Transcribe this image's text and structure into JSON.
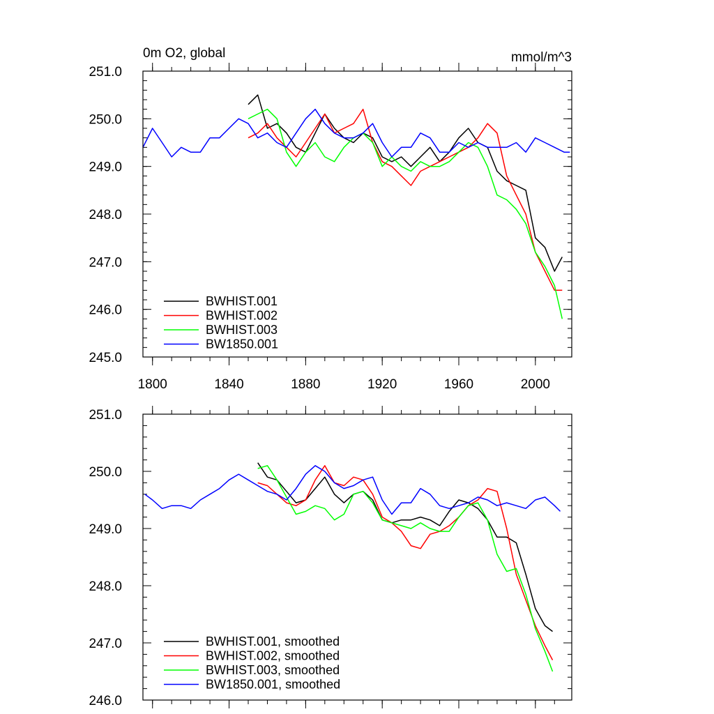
{
  "chart_data": [
    {
      "type": "line",
      "title": "0m O2, global",
      "units": "mmol/m^3",
      "xlim": [
        1795,
        2019
      ],
      "ylim": [
        245.0,
        251.0
      ],
      "x_ticks": [
        1800,
        1840,
        1880,
        1920,
        1960,
        2000
      ],
      "x_tick_labels": [
        "1800",
        "1840",
        "1880",
        "1920",
        "1960",
        "2000"
      ],
      "y_ticks": [
        245.0,
        246.0,
        247.0,
        248.0,
        249.0,
        250.0,
        251.0
      ],
      "y_tick_labels": [
        "245.0",
        "246.0",
        "247.0",
        "248.0",
        "249.0",
        "250.0",
        "251.0"
      ],
      "legend_position": "bottom-left",
      "series": [
        {
          "name": "BWHIST.001",
          "color": "#000000",
          "x": [
            1850,
            1855,
            1860,
            1865,
            1870,
            1875,
            1880,
            1885,
            1890,
            1895,
            1900,
            1905,
            1910,
            1915,
            1920,
            1925,
            1930,
            1935,
            1940,
            1945,
            1950,
            1955,
            1960,
            1965,
            1970,
            1975,
            1980,
            1985,
            1990,
            1995,
            2000,
            2005,
            2010,
            2014
          ],
          "values": [
            250.3,
            250.5,
            249.8,
            249.9,
            249.7,
            249.4,
            249.3,
            249.7,
            250.1,
            249.8,
            249.6,
            249.5,
            249.7,
            249.6,
            249.2,
            249.1,
            249.2,
            249.0,
            249.2,
            249.4,
            249.1,
            249.3,
            249.6,
            249.8,
            249.5,
            249.4,
            248.9,
            248.7,
            248.6,
            248.5,
            247.5,
            247.3,
            246.8,
            247.1
          ]
        },
        {
          "name": "BWHIST.002",
          "color": "#ff0000",
          "x": [
            1850,
            1855,
            1860,
            1865,
            1870,
            1875,
            1880,
            1885,
            1890,
            1895,
            1900,
            1905,
            1910,
            1915,
            1920,
            1925,
            1930,
            1935,
            1940,
            1945,
            1950,
            1955,
            1960,
            1965,
            1970,
            1975,
            1980,
            1985,
            1990,
            1995,
            2000,
            2005,
            2010,
            2014
          ],
          "values": [
            249.6,
            249.7,
            249.9,
            249.6,
            249.4,
            249.2,
            249.5,
            249.8,
            250.1,
            249.7,
            249.8,
            249.9,
            250.2,
            249.5,
            249.1,
            249.0,
            248.8,
            248.6,
            248.9,
            249.0,
            249.1,
            249.2,
            249.3,
            249.4,
            249.6,
            249.9,
            249.7,
            248.8,
            248.4,
            248.0,
            247.2,
            246.8,
            246.4,
            246.4
          ]
        },
        {
          "name": "BWHIST.003",
          "color": "#00ff00",
          "x": [
            1850,
            1855,
            1860,
            1865,
            1870,
            1875,
            1880,
            1885,
            1890,
            1895,
            1900,
            1905,
            1910,
            1915,
            1920,
            1925,
            1930,
            1935,
            1940,
            1945,
            1950,
            1955,
            1960,
            1965,
            1970,
            1975,
            1980,
            1985,
            1990,
            1995,
            2000,
            2005,
            2010,
            2014
          ],
          "values": [
            250.0,
            250.1,
            250.2,
            250.0,
            249.3,
            249.0,
            249.3,
            249.5,
            249.2,
            249.1,
            249.4,
            249.6,
            249.7,
            249.5,
            249.0,
            249.2,
            249.0,
            248.9,
            249.1,
            249.0,
            249.0,
            249.1,
            249.3,
            249.5,
            249.4,
            249.0,
            248.4,
            248.3,
            248.1,
            247.8,
            247.2,
            246.9,
            246.5,
            245.8
          ]
        },
        {
          "name": "BW1850.001",
          "color": "#0000ff",
          "x": [
            1795,
            1800,
            1805,
            1810,
            1815,
            1820,
            1825,
            1830,
            1835,
            1840,
            1845,
            1850,
            1855,
            1860,
            1865,
            1870,
            1875,
            1880,
            1885,
            1890,
            1895,
            1900,
            1905,
            1910,
            1915,
            1920,
            1925,
            1930,
            1935,
            1940,
            1945,
            1950,
            1955,
            1960,
            1965,
            1970,
            1975,
            1980,
            1985,
            1990,
            1995,
            2000,
            2005,
            2010,
            2015,
            2018
          ],
          "values": [
            249.4,
            249.8,
            249.5,
            249.2,
            249.4,
            249.3,
            249.3,
            249.6,
            249.6,
            249.8,
            250.0,
            249.9,
            249.6,
            249.7,
            249.5,
            249.4,
            249.7,
            250.0,
            250.2,
            249.9,
            249.7,
            249.6,
            249.6,
            249.7,
            249.9,
            249.5,
            249.2,
            249.4,
            249.4,
            249.7,
            249.6,
            249.3,
            249.3,
            249.5,
            249.4,
            249.5,
            249.4,
            249.4,
            249.4,
            249.5,
            249.3,
            249.6,
            249.5,
            249.4,
            249.3,
            249.3
          ]
        }
      ]
    },
    {
      "type": "line",
      "title": "",
      "units": "",
      "xlim": [
        1795,
        2019
      ],
      "ylim": [
        246.0,
        251.0
      ],
      "x_ticks": [
        1800,
        1840,
        1880,
        1920,
        1960,
        2000
      ],
      "y_ticks": [
        246.0,
        247.0,
        248.0,
        249.0,
        250.0,
        251.0
      ],
      "y_tick_labels": [
        "246.0",
        "247.0",
        "248.0",
        "249.0",
        "250.0",
        "251.0"
      ],
      "legend_position": "bottom-left",
      "series": [
        {
          "name": "BWHIST.001, smoothed",
          "color": "#000000",
          "x": [
            1855,
            1860,
            1865,
            1870,
            1875,
            1880,
            1885,
            1890,
            1895,
            1900,
            1905,
            1910,
            1915,
            1920,
            1925,
            1930,
            1935,
            1940,
            1945,
            1950,
            1955,
            1960,
            1965,
            1970,
            1975,
            1980,
            1985,
            1990,
            1995,
            2000,
            2005,
            2009
          ],
          "values": [
            250.15,
            249.9,
            249.85,
            249.65,
            249.45,
            249.5,
            249.7,
            249.9,
            249.6,
            249.45,
            249.6,
            249.65,
            249.5,
            249.15,
            249.1,
            249.15,
            249.15,
            249.2,
            249.15,
            249.05,
            249.3,
            249.5,
            249.45,
            249.35,
            249.15,
            248.85,
            248.85,
            248.75,
            248.2,
            247.6,
            247.3,
            247.2
          ]
        },
        {
          "name": "BWHIST.002, smoothed",
          "color": "#ff0000",
          "x": [
            1855,
            1860,
            1865,
            1870,
            1875,
            1880,
            1885,
            1890,
            1895,
            1900,
            1905,
            1910,
            1915,
            1920,
            1925,
            1930,
            1935,
            1940,
            1945,
            1950,
            1955,
            1960,
            1965,
            1970,
            1975,
            1980,
            1985,
            1990,
            1995,
            2000,
            2005,
            2009
          ],
          "values": [
            249.8,
            249.75,
            249.6,
            249.45,
            249.4,
            249.5,
            249.85,
            250.1,
            249.8,
            249.75,
            249.9,
            249.85,
            249.6,
            249.2,
            249.1,
            248.95,
            248.7,
            248.65,
            248.9,
            248.95,
            249.05,
            249.2,
            249.4,
            249.5,
            249.7,
            249.65,
            249.0,
            248.2,
            247.75,
            247.3,
            246.95,
            246.7
          ]
        },
        {
          "name": "BWHIST.003, smoothed",
          "color": "#00ff00",
          "x": [
            1855,
            1860,
            1865,
            1870,
            1875,
            1880,
            1885,
            1890,
            1895,
            1900,
            1905,
            1910,
            1915,
            1920,
            1925,
            1930,
            1935,
            1940,
            1945,
            1950,
            1955,
            1960,
            1965,
            1970,
            1975,
            1980,
            1985,
            1990,
            1995,
            2000,
            2005,
            2009
          ],
          "values": [
            250.05,
            250.1,
            249.85,
            249.55,
            249.25,
            249.3,
            249.4,
            249.35,
            249.15,
            249.25,
            249.6,
            249.65,
            249.45,
            249.15,
            249.1,
            249.05,
            249.0,
            249.1,
            249.0,
            248.95,
            248.95,
            249.2,
            249.4,
            249.45,
            249.15,
            248.55,
            248.25,
            248.3,
            247.85,
            247.25,
            246.85,
            246.5
          ]
        },
        {
          "name": "BW1850.001, smoothed",
          "color": "#0000ff",
          "x": [
            1796,
            1800,
            1805,
            1810,
            1815,
            1820,
            1825,
            1830,
            1835,
            1840,
            1845,
            1850,
            1855,
            1860,
            1865,
            1870,
            1875,
            1880,
            1885,
            1890,
            1895,
            1900,
            1905,
            1910,
            1915,
            1920,
            1925,
            1930,
            1935,
            1940,
            1945,
            1950,
            1955,
            1960,
            1965,
            1970,
            1975,
            1980,
            1985,
            1990,
            1995,
            2000,
            2005,
            2010,
            2013
          ],
          "values": [
            249.6,
            249.5,
            249.35,
            249.4,
            249.4,
            249.35,
            249.5,
            249.6,
            249.7,
            249.85,
            249.95,
            249.85,
            249.75,
            249.65,
            249.6,
            249.5,
            249.7,
            249.95,
            250.1,
            250.0,
            249.8,
            249.7,
            249.75,
            249.85,
            249.9,
            249.5,
            249.25,
            249.45,
            249.45,
            249.7,
            249.6,
            249.4,
            249.35,
            249.4,
            249.45,
            249.55,
            249.5,
            249.4,
            249.45,
            249.4,
            249.35,
            249.5,
            249.55,
            249.4,
            249.3
          ]
        }
      ]
    }
  ]
}
